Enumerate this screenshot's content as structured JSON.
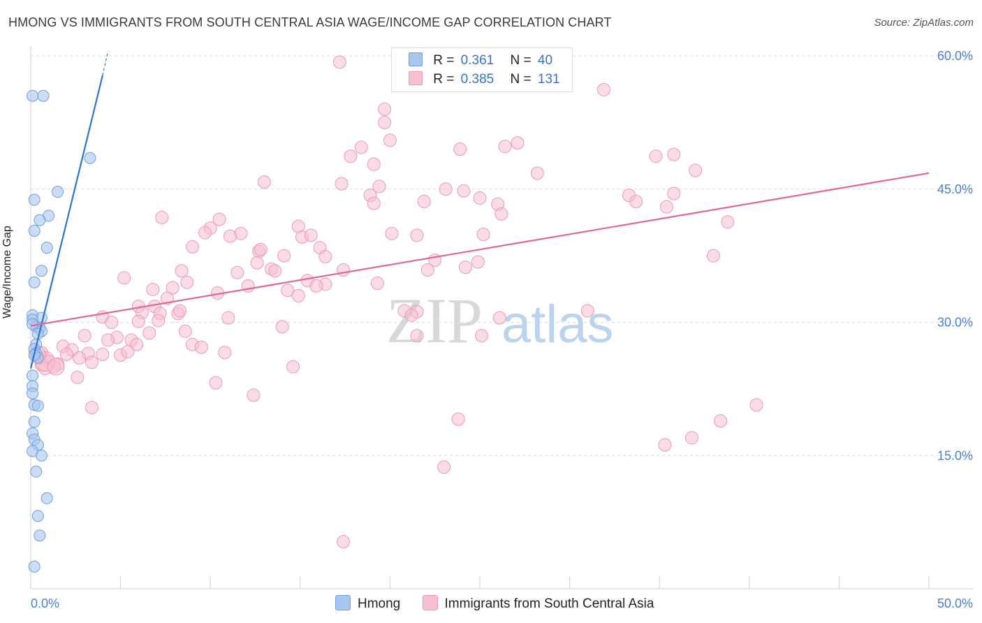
{
  "header": {
    "title": "HMONG VS IMMIGRANTS FROM SOUTH CENTRAL ASIA WAGE/INCOME GAP CORRELATION CHART",
    "source": "Source: ZipAtlas.com"
  },
  "watermark": {
    "zip": "ZIP",
    "atlas": "atlas"
  },
  "legend": {
    "rows": [
      {
        "r_label": "R =",
        "r_value": "0.361",
        "n_label": "N =",
        "n_value": "40"
      },
      {
        "r_label": "R =",
        "r_value": "0.385",
        "n_label": "N =",
        "n_value": "131"
      }
    ]
  },
  "bottom_legend": {
    "series1": "Hmong",
    "series2": "Immigrants from South Central Asia"
  },
  "colors": {
    "blue_fill": "#a9c6ee",
    "blue_stroke": "#6f9fdc",
    "blue_line": "#2f74d0",
    "pink_fill": "#f6c0d0",
    "pink_stroke": "#ec9ab4",
    "pink_line": "#e0679a",
    "tick": "#4a7fd4",
    "grid": "#dcdcdc"
  },
  "chart_data": {
    "type": "scatter",
    "title": "HMONG VS IMMIGRANTS FROM SOUTH CENTRAL ASIA WAGE/INCOME GAP CORRELATION CHART",
    "xlabel": "",
    "ylabel": "Wage/Income Gap",
    "xlim": [
      0,
      50
    ],
    "ylim": [
      0,
      60
    ],
    "x_tick_labels": [
      "0.0%",
      "50.0%"
    ],
    "y_ticks": [
      15,
      30,
      45,
      60
    ],
    "y_tick_labels": [
      "15.0%",
      "30.0%",
      "45.0%",
      "60.0%"
    ],
    "grid": true,
    "series": [
      {
        "name": "Hmong",
        "color": "#a9c6ee",
        "points": [
          [
            0.1,
            55.5
          ],
          [
            0.7,
            55.5
          ],
          [
            3.3,
            48.5
          ],
          [
            1.5,
            44.7
          ],
          [
            0.2,
            43.8
          ],
          [
            1.0,
            42.0
          ],
          [
            0.5,
            41.5
          ],
          [
            0.2,
            40.3
          ],
          [
            0.9,
            38.4
          ],
          [
            0.6,
            35.8
          ],
          [
            0.2,
            34.5
          ],
          [
            0.1,
            30.8
          ],
          [
            0.6,
            30.5
          ],
          [
            0.1,
            30.3
          ],
          [
            0.3,
            29.5
          ],
          [
            0.5,
            29.4
          ],
          [
            0.6,
            29.0
          ],
          [
            0.3,
            27.5
          ],
          [
            0.2,
            27.0
          ],
          [
            0.3,
            26.5
          ],
          [
            0.4,
            26.0
          ],
          [
            0.2,
            26.3
          ],
          [
            0.1,
            24.0
          ],
          [
            0.1,
            22.8
          ],
          [
            0.1,
            22.0
          ],
          [
            0.2,
            20.7
          ],
          [
            0.4,
            20.6
          ],
          [
            0.2,
            18.8
          ],
          [
            0.1,
            17.5
          ],
          [
            0.2,
            16.8
          ],
          [
            0.4,
            16.2
          ],
          [
            0.1,
            15.5
          ],
          [
            0.6,
            15.0
          ],
          [
            0.3,
            13.2
          ],
          [
            0.9,
            10.2
          ],
          [
            0.4,
            8.2
          ],
          [
            0.5,
            6.0
          ],
          [
            0.2,
            2.5
          ],
          [
            0.1,
            29.8
          ],
          [
            0.4,
            28.7
          ]
        ]
      },
      {
        "name": "Immigrants from South Central Asia",
        "color": "#f6c0d0",
        "points": [
          [
            17.2,
            59.3
          ],
          [
            31.9,
            56.2
          ],
          [
            19.7,
            54.0
          ],
          [
            19.7,
            52.5
          ],
          [
            20.0,
            50.5
          ],
          [
            18.4,
            49.7
          ],
          [
            27.1,
            50.2
          ],
          [
            26.4,
            49.8
          ],
          [
            23.9,
            49.5
          ],
          [
            34.8,
            48.7
          ],
          [
            35.8,
            48.9
          ],
          [
            17.8,
            48.7
          ],
          [
            19.1,
            47.8
          ],
          [
            28.2,
            46.8
          ],
          [
            37.0,
            47.1
          ],
          [
            13.0,
            45.8
          ],
          [
            17.3,
            45.6
          ],
          [
            19.4,
            45.3
          ],
          [
            23.1,
            45.0
          ],
          [
            24.1,
            44.8
          ],
          [
            18.9,
            44.3
          ],
          [
            33.3,
            44.3
          ],
          [
            35.8,
            44.5
          ],
          [
            19.1,
            43.4
          ],
          [
            25.0,
            44.0
          ],
          [
            26.0,
            43.3
          ],
          [
            21.9,
            43.6
          ],
          [
            33.7,
            43.6
          ],
          [
            35.4,
            43.0
          ],
          [
            26.2,
            42.2
          ],
          [
            7.3,
            41.8
          ],
          [
            10.5,
            41.6
          ],
          [
            38.8,
            41.3
          ],
          [
            14.9,
            40.8
          ],
          [
            10.0,
            40.6
          ],
          [
            9.7,
            40.1
          ],
          [
            11.7,
            40.0
          ],
          [
            20.1,
            40.0
          ],
          [
            21.5,
            39.8
          ],
          [
            25.2,
            39.9
          ],
          [
            15.1,
            39.6
          ],
          [
            15.6,
            39.8
          ],
          [
            11.1,
            39.7
          ],
          [
            9.0,
            38.5
          ],
          [
            16.1,
            38.4
          ],
          [
            12.7,
            38.0
          ],
          [
            12.8,
            38.2
          ],
          [
            14.1,
            37.5
          ],
          [
            16.4,
            37.4
          ],
          [
            22.5,
            37.0
          ],
          [
            24.9,
            36.8
          ],
          [
            12.6,
            36.7
          ],
          [
            38.0,
            37.5
          ],
          [
            8.4,
            35.8
          ],
          [
            11.5,
            35.6
          ],
          [
            13.4,
            36.0
          ],
          [
            17.4,
            35.9
          ],
          [
            22.1,
            35.9
          ],
          [
            24.2,
            36.2
          ],
          [
            13.6,
            35.8
          ],
          [
            5.2,
            35.0
          ],
          [
            8.7,
            34.5
          ],
          [
            15.4,
            34.7
          ],
          [
            16.4,
            34.3
          ],
          [
            19.3,
            34.4
          ],
          [
            15.9,
            34.1
          ],
          [
            12.1,
            34.1
          ],
          [
            7.9,
            33.9
          ],
          [
            6.8,
            33.7
          ],
          [
            10.4,
            33.3
          ],
          [
            14.3,
            33.6
          ],
          [
            14.9,
            33.0
          ],
          [
            7.6,
            32.7
          ],
          [
            6.0,
            31.8
          ],
          [
            6.9,
            31.8
          ],
          [
            8.2,
            31.0
          ],
          [
            4.0,
            30.6
          ],
          [
            6.2,
            31.1
          ],
          [
            7.2,
            31.0
          ],
          [
            8.3,
            31.3
          ],
          [
            20.8,
            31.3
          ],
          [
            21.5,
            31.2
          ],
          [
            21.2,
            30.8
          ],
          [
            31.0,
            31.3
          ],
          [
            11.0,
            30.5
          ],
          [
            26.1,
            30.5
          ],
          [
            4.5,
            30.0
          ],
          [
            6.0,
            30.1
          ],
          [
            7.1,
            30.2
          ],
          [
            14.0,
            29.5
          ],
          [
            8.6,
            29.0
          ],
          [
            6.6,
            28.8
          ],
          [
            3.0,
            28.5
          ],
          [
            4.8,
            28.3
          ],
          [
            5.6,
            28.0
          ],
          [
            21.5,
            28.5
          ],
          [
            25.1,
            28.5
          ],
          [
            4.3,
            28.0
          ],
          [
            1.8,
            27.3
          ],
          [
            5.9,
            27.5
          ],
          [
            9.0,
            27.5
          ],
          [
            9.5,
            27.2
          ],
          [
            2.3,
            26.9
          ],
          [
            3.2,
            26.5
          ],
          [
            2.0,
            26.4
          ],
          [
            0.6,
            26.6
          ],
          [
            4.0,
            26.4
          ],
          [
            5.0,
            26.3
          ],
          [
            5.4,
            26.7
          ],
          [
            10.8,
            26.6
          ],
          [
            2.7,
            26.0
          ],
          [
            0.8,
            25.8
          ],
          [
            0.5,
            25.9
          ],
          [
            1.0,
            25.6
          ],
          [
            1.5,
            25.3
          ],
          [
            3.4,
            25.5
          ],
          [
            1.3,
            25.0
          ],
          [
            0.6,
            25.2
          ],
          [
            0.8,
            24.8
          ],
          [
            14.6,
            25.0
          ],
          [
            2.6,
            23.8
          ],
          [
            10.3,
            23.2
          ],
          [
            12.4,
            21.8
          ],
          [
            40.4,
            20.7
          ],
          [
            3.4,
            20.4
          ],
          [
            23.8,
            19.1
          ],
          [
            38.4,
            18.9
          ],
          [
            36.8,
            17.0
          ],
          [
            35.3,
            16.2
          ],
          [
            23.0,
            13.7
          ],
          [
            17.4,
            5.3
          ]
        ]
      }
    ],
    "trendlines": [
      {
        "series": "Hmong",
        "from": [
          0.0,
          24.8
        ],
        "to": [
          4.0,
          57.8
        ],
        "extension_to": [
          4.3,
          60.5
        ]
      },
      {
        "series": "Immigrants from South Central Asia",
        "from": [
          0.0,
          29.6
        ],
        "to": [
          50.0,
          46.8
        ]
      }
    ]
  }
}
